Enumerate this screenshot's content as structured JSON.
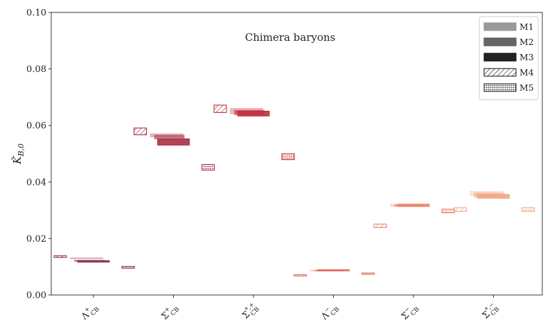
{
  "chart_data": {
    "type": "bar",
    "title": "Chimera baryons",
    "ylabel": "K̂B,0",
    "ylabel_main": "K̂",
    "ylabel_sub": "B,0",
    "ylim": [
      0,
      0.1
    ],
    "yticks": [
      "0.00",
      "0.02",
      "0.04",
      "0.06",
      "0.08",
      "0.10"
    ],
    "grid": false,
    "legend_position": "top-right",
    "categories": [
      {
        "main": "Λ",
        "sup": "+",
        "sub": "CB"
      },
      {
        "main": "Σ",
        "sup": "+",
        "sub": "CB"
      },
      {
        "main": "Σ",
        "sup": "*,+",
        "sub": "CB"
      },
      {
        "main": "Λ",
        "sup": "−",
        "sub": "CB"
      },
      {
        "main": "Σ",
        "sup": "−",
        "sub": "CB"
      },
      {
        "main": "Σ",
        "sup": "*,−",
        "sub": "CB"
      }
    ],
    "category_colors": [
      "#8e2a4c",
      "#ab2f45",
      "#c0303f",
      "#dd6a5c",
      "#e8886a",
      "#f2a884"
    ],
    "legend": [
      {
        "name": "M1",
        "style": "m1"
      },
      {
        "name": "M2",
        "style": "m2"
      },
      {
        "name": "M3",
        "style": "m3"
      },
      {
        "name": "M4",
        "style": "m4"
      },
      {
        "name": "M5",
        "style": "m5"
      }
    ],
    "series": [
      {
        "name": "M1",
        "values": [
          [
            0.0127,
            0.0133
          ],
          [
            0.0558,
            0.0572
          ],
          [
            0.064,
            0.0662
          ],
          [
            0.0085,
            0.0089
          ],
          [
            0.0313,
            0.0322
          ],
          [
            0.035,
            0.0368
          ]
        ]
      },
      {
        "name": "M2",
        "values": [
          [
            0.0118,
            0.0124
          ],
          [
            0.0551,
            0.0567
          ],
          [
            0.0637,
            0.0655
          ],
          [
            0.0086,
            0.0089
          ],
          [
            0.0312,
            0.0321
          ],
          [
            0.0345,
            0.0362
          ]
        ]
      },
      {
        "name": "M3",
        "values": [
          [
            0.0116,
            0.0122
          ],
          [
            0.053,
            0.0553
          ],
          [
            0.0633,
            0.0651
          ],
          [
            0.0086,
            0.009
          ],
          [
            0.0313,
            0.0322
          ],
          [
            0.0342,
            0.0356
          ]
        ]
      },
      {
        "name": "M4",
        "values": [
          [
            0.0133,
            0.0139
          ],
          [
            0.0567,
            0.0591
          ],
          [
            0.0646,
            0.0672
          ],
          [
            0.0068,
            0.0072
          ],
          [
            0.0239,
            0.0251
          ],
          [
            0.0296,
            0.0309
          ]
        ]
      },
      {
        "name": "M5",
        "values": [
          [
            0.0095,
            0.0101
          ],
          [
            0.0442,
            0.0462
          ],
          [
            0.0479,
            0.05
          ],
          [
            0.0074,
            0.0078
          ],
          [
            0.0291,
            0.0304
          ],
          [
            0.0296,
            0.0309
          ]
        ]
      }
    ]
  }
}
